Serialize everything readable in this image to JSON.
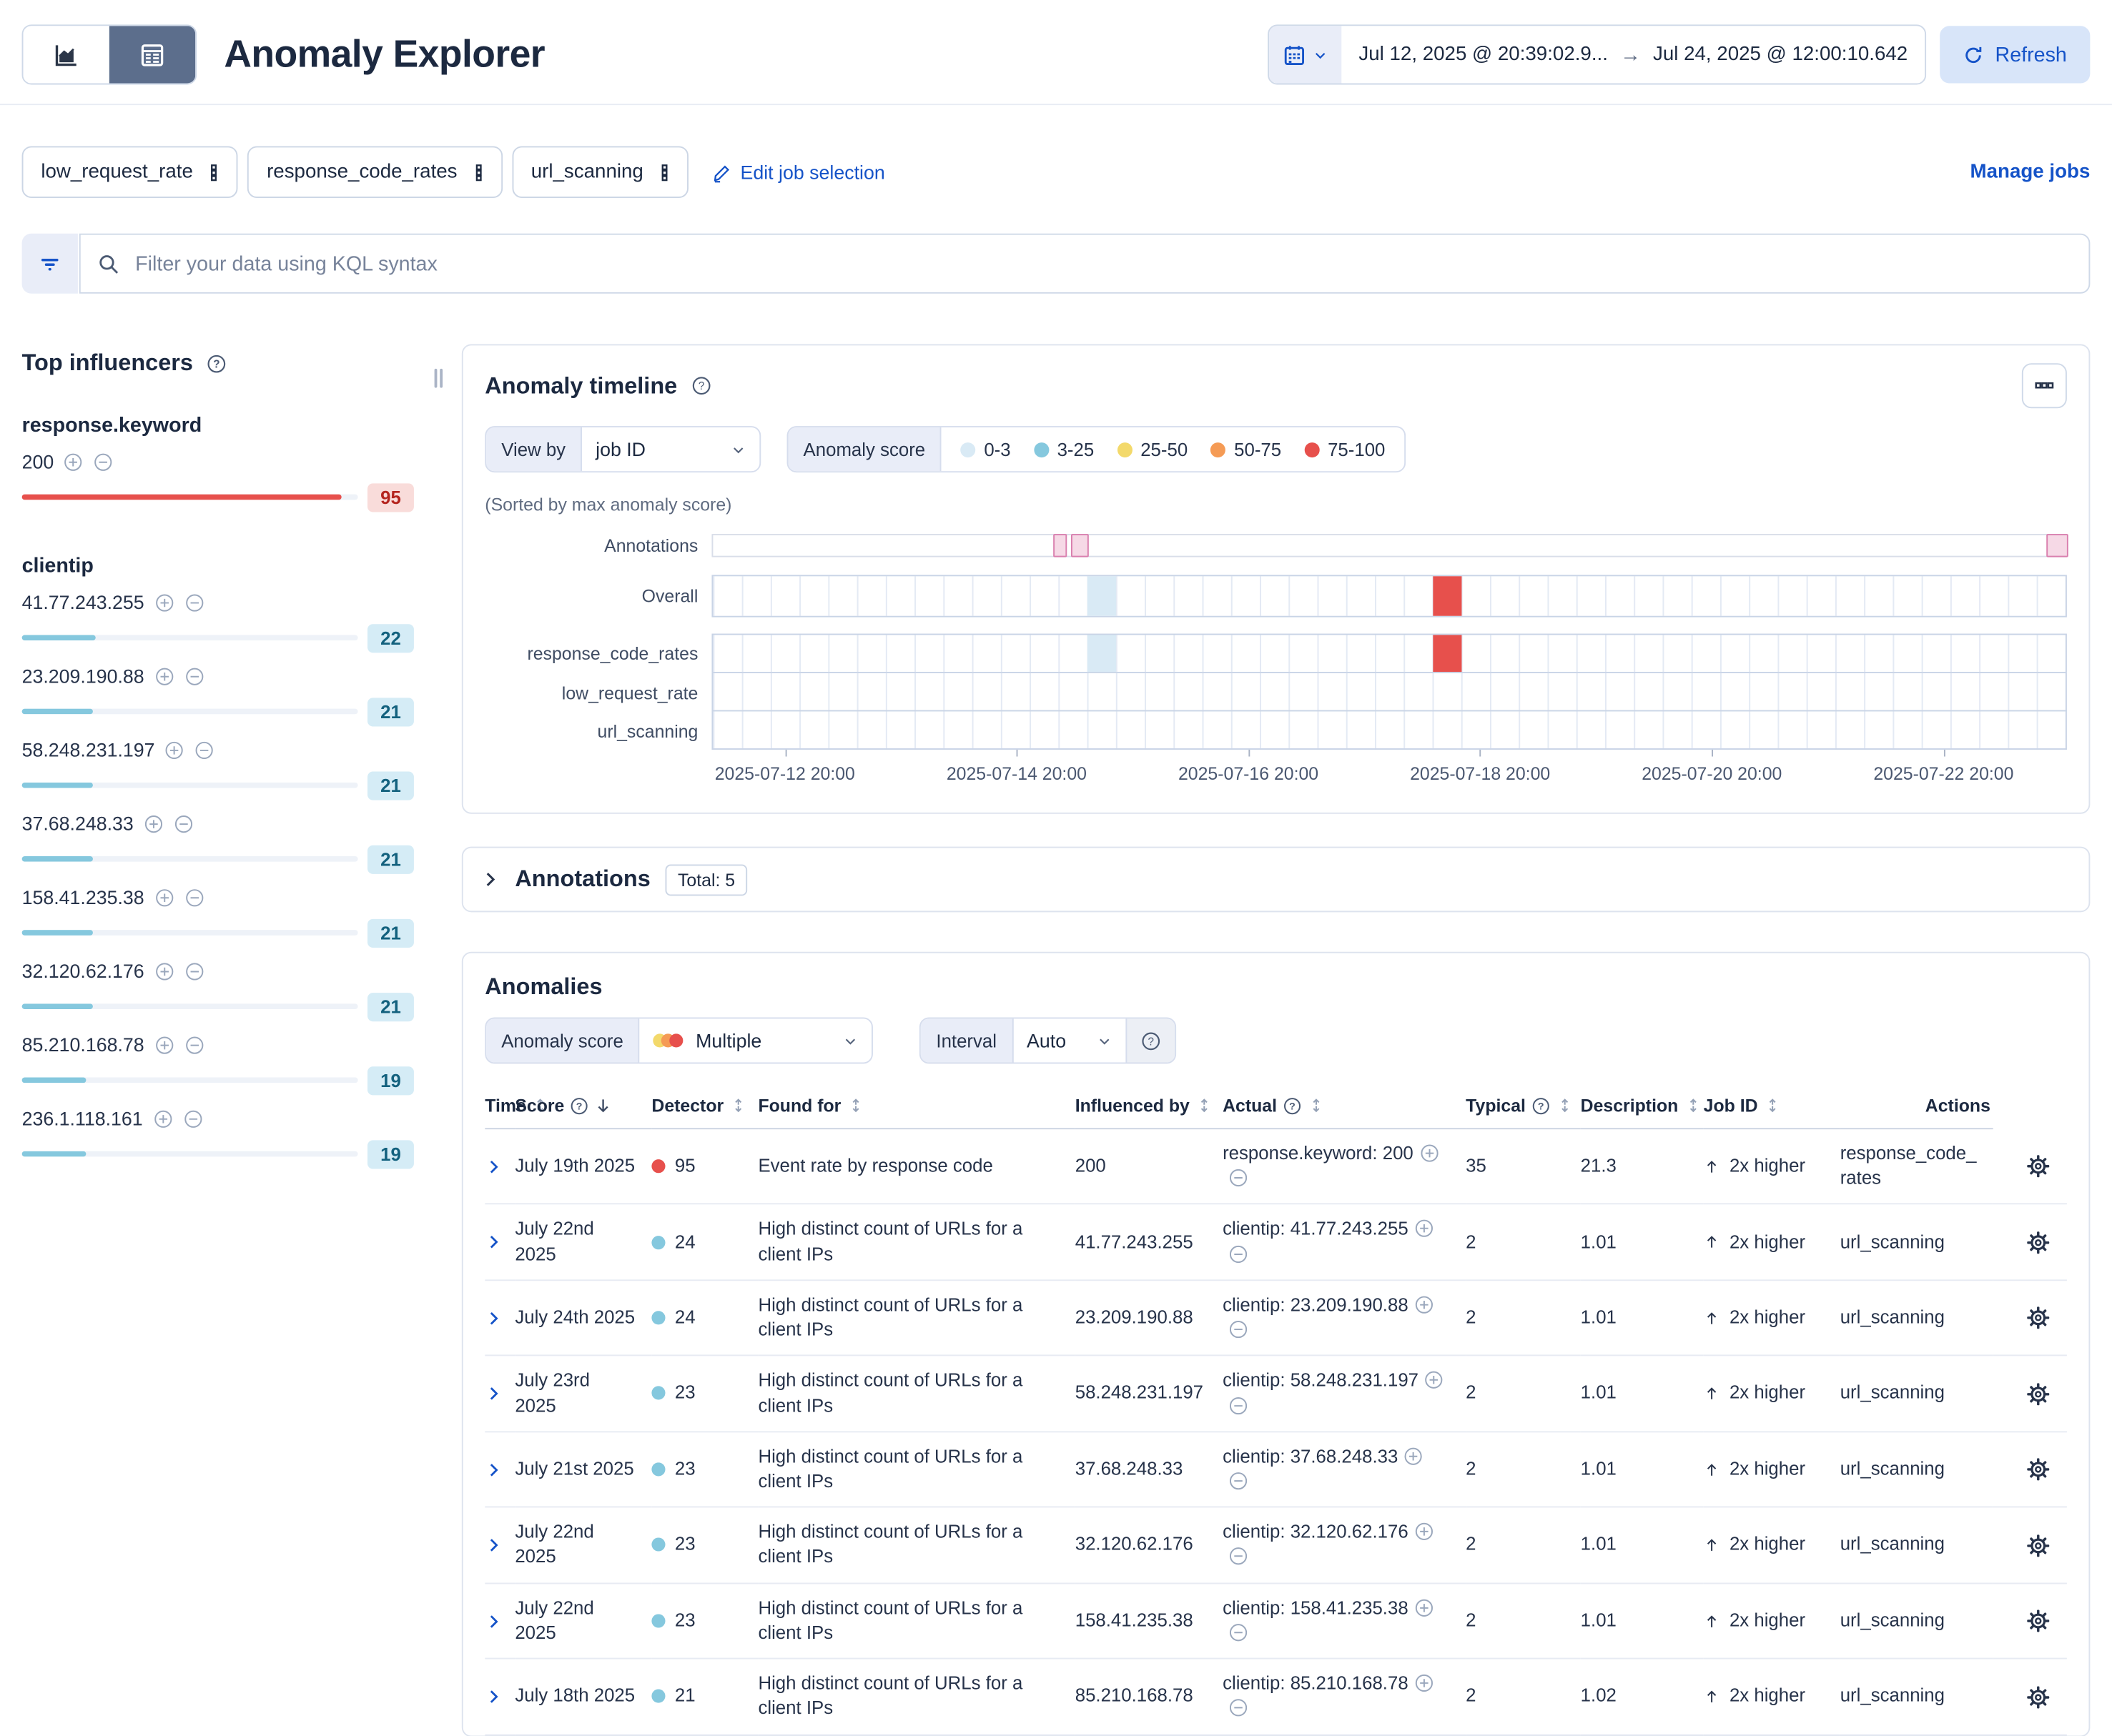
{
  "header": {
    "title": "Anomaly Explorer",
    "datepicker": {
      "start": "Jul 12, 2025 @ 20:39:02.9...",
      "end": "Jul 24, 2025 @ 12:00:10.642"
    },
    "refresh_label": "Refresh"
  },
  "jobs_bar": {
    "chips": [
      "low_request_rate",
      "response_code_rates",
      "url_scanning"
    ],
    "edit_label": "Edit job selection",
    "manage_label": "Manage jobs"
  },
  "kql": {
    "placeholder": "Filter your data using KQL syntax"
  },
  "influencers": {
    "title": "Top influencers",
    "groups": [
      {
        "field": "response.keyword",
        "items": [
          {
            "value": "200",
            "score": 95,
            "severity": "critical"
          }
        ]
      },
      {
        "field": "clientip",
        "items": [
          {
            "value": "41.77.243.255",
            "score": 22,
            "severity": "warning"
          },
          {
            "value": "23.209.190.88",
            "score": 21,
            "severity": "warning"
          },
          {
            "value": "58.248.231.197",
            "score": 21,
            "severity": "warning"
          },
          {
            "value": "37.68.248.33",
            "score": 21,
            "severity": "warning"
          },
          {
            "value": "158.41.235.38",
            "score": 21,
            "severity": "warning"
          },
          {
            "value": "32.120.62.176",
            "score": 21,
            "severity": "warning"
          },
          {
            "value": "85.210.168.78",
            "score": 19,
            "severity": "warning"
          },
          {
            "value": "236.1.118.161",
            "score": 19,
            "severity": "warning"
          }
        ]
      }
    ]
  },
  "timeline": {
    "title": "Anomaly timeline",
    "view_by_label": "View by",
    "view_by_value": "job ID",
    "legend_label": "Anomaly score",
    "legend": [
      {
        "label": "0-3",
        "color": "#d9eaf5"
      },
      {
        "label": "3-25",
        "color": "#85c8de"
      },
      {
        "label": "25-50",
        "color": "#f3d96b"
      },
      {
        "label": "50-75",
        "color": "#f59b55"
      },
      {
        "label": "75-100",
        "color": "#e7504c"
      }
    ],
    "sorted_note": "(Sorted by max anomaly score)",
    "columns": 47,
    "lanes": [
      {
        "label": "Annotations",
        "type": "annotations"
      },
      {
        "label": "Overall",
        "type": "overall",
        "cells": [
          {
            "col": 14,
            "severity": "low"
          },
          {
            "col": 26,
            "severity": "critical"
          }
        ]
      },
      {
        "label": "response_code_rates",
        "type": "job",
        "cells": [
          {
            "col": 14,
            "severity": "low"
          },
          {
            "col": 26,
            "severity": "critical"
          }
        ]
      },
      {
        "label": "low_request_rate",
        "type": "job",
        "cells": []
      },
      {
        "label": "url_scanning",
        "type": "job",
        "cells": []
      }
    ],
    "annotation_markers": [
      {
        "left": 25.2,
        "width": 0.8
      },
      {
        "left": 26.5,
        "width": 1.05
      },
      {
        "left": 98.6,
        "width": 1.4
      }
    ],
    "axis_labels": [
      {
        "label": "2025-07-12 20:00",
        "pos": 5.4
      },
      {
        "label": "2025-07-14 20:00",
        "pos": 22.5
      },
      {
        "label": "2025-07-16 20:00",
        "pos": 39.6
      },
      {
        "label": "2025-07-18 20:00",
        "pos": 56.7
      },
      {
        "label": "2025-07-20 20:00",
        "pos": 73.8
      },
      {
        "label": "2025-07-22 20:00",
        "pos": 90.9
      }
    ]
  },
  "annotations_section": {
    "title": "Annotations",
    "total_badge": "Total: 5"
  },
  "anomalies": {
    "title": "Anomalies",
    "score_label": "Anomaly score",
    "score_value": "Multiple",
    "score_dot_colors": [
      "#f3d96b",
      "#f59b55",
      "#e7504c"
    ],
    "interval_label": "Interval",
    "interval_value": "Auto",
    "table": {
      "columns": [
        {
          "label": "Time",
          "sort": "both"
        },
        {
          "label": "Score",
          "sort": "desc",
          "help": true
        },
        {
          "label": "Detector",
          "sort": "both"
        },
        {
          "label": "Found for",
          "sort": "both"
        },
        {
          "label": "Influenced by",
          "sort": "both"
        },
        {
          "label": "Actual",
          "sort": "both",
          "help": true
        },
        {
          "label": "Typical",
          "sort": "both",
          "help": true
        },
        {
          "label": "Description",
          "sort": "both"
        },
        {
          "label": "Job ID",
          "sort": "both"
        },
        {
          "label": "Actions",
          "sort": "none"
        }
      ],
      "rows": [
        {
          "time": "July 19th 2025",
          "score": "95",
          "severity": "critical",
          "detector": "Event rate by response code",
          "found_for": "200",
          "influenced_by": "response.keyword: 200",
          "actual": "35",
          "typical": "21.3",
          "description": "2x higher",
          "job_id": "response_code_rates"
        },
        {
          "time": "July 22nd 2025",
          "score": "24",
          "severity": "warning",
          "detector": "High distinct count of URLs for a client IPs",
          "found_for": "41.77.243.255",
          "influenced_by": "clientip: 41.77.243.255",
          "actual": "2",
          "typical": "1.01",
          "description": "2x higher",
          "job_id": "url_scanning"
        },
        {
          "time": "July 24th 2025",
          "score": "24",
          "severity": "warning",
          "detector": "High distinct count of URLs for a client IPs",
          "found_for": "23.209.190.88",
          "influenced_by": "clientip: 23.209.190.88",
          "actual": "2",
          "typical": "1.01",
          "description": "2x higher",
          "job_id": "url_scanning"
        },
        {
          "time": "July 23rd 2025",
          "score": "23",
          "severity": "warning",
          "detector": "High distinct count of URLs for a client IPs",
          "found_for": "58.248.231.197",
          "influenced_by": "clientip: 58.248.231.197",
          "actual": "2",
          "typical": "1.01",
          "description": "2x higher",
          "job_id": "url_scanning"
        },
        {
          "time": "July 21st 2025",
          "score": "23",
          "severity": "warning",
          "detector": "High distinct count of URLs for a client IPs",
          "found_for": "37.68.248.33",
          "influenced_by": "clientip: 37.68.248.33",
          "actual": "2",
          "typical": "1.01",
          "description": "2x higher",
          "job_id": "url_scanning"
        },
        {
          "time": "July 22nd 2025",
          "score": "23",
          "severity": "warning",
          "detector": "High distinct count of URLs for a client IPs",
          "found_for": "32.120.62.176",
          "influenced_by": "clientip: 32.120.62.176",
          "actual": "2",
          "typical": "1.01",
          "description": "2x higher",
          "job_id": "url_scanning"
        },
        {
          "time": "July 22nd 2025",
          "score": "23",
          "severity": "warning",
          "detector": "High distinct count of URLs for a client IPs",
          "found_for": "158.41.235.38",
          "influenced_by": "clientip: 158.41.235.38",
          "actual": "2",
          "typical": "1.01",
          "description": "2x higher",
          "job_id": "url_scanning"
        },
        {
          "time": "July 18th 2025",
          "score": "21",
          "severity": "warning",
          "detector": "High distinct count of URLs for a client IPs",
          "found_for": "85.210.168.78",
          "influenced_by": "clientip: 85.210.168.78",
          "actual": "2",
          "typical": "1.02",
          "description": "2x higher",
          "job_id": "url_scanning"
        }
      ]
    }
  },
  "colors": {
    "primary": "#1553c8",
    "severity": {
      "low": "#d9eaf5",
      "warning": "#85c8de",
      "critical": "#e7504c"
    },
    "badge_blue_bg": "#d5ecf6",
    "badge_blue_text": "#13617e",
    "badge_red_bg": "#f9dcda",
    "badge_red_text": "#b4251f",
    "bar_track": "#eef2f8"
  }
}
